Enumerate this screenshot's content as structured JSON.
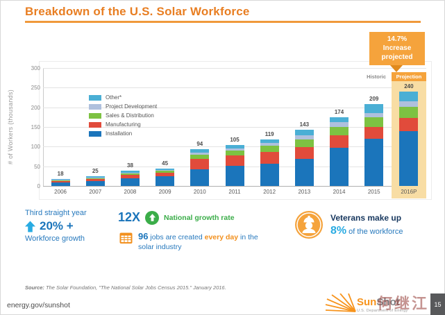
{
  "slide": {
    "title": "Breakdown of the U.S. Solar Workforce",
    "watermark": "何继江",
    "source": {
      "prefix": "Source:",
      "text": " The Solar Foundation, \"The National Solar Jobs Census 2015.\" January 2016."
    },
    "footer": {
      "url": "energy.gov/sunshot",
      "page": "15",
      "logo_sun": "Sun",
      "logo_shot": "Shot",
      "logo_dept": "U.S. Department of Energy"
    }
  },
  "chart_data": {
    "type": "bar",
    "stacked": true,
    "title": "",
    "ylabel": "# of Workers (thousands)",
    "ylim": [
      0,
      300
    ],
    "yticks": [
      0,
      50,
      100,
      150,
      200,
      250,
      300
    ],
    "grid": true,
    "legend_position": "upper-left-inside",
    "categories": [
      "2006",
      "2007",
      "2008",
      "2009",
      "2010",
      "2011",
      "2012",
      "2013",
      "2014",
      "2015",
      "2016P"
    ],
    "totals": [
      18,
      25,
      38,
      45,
      94,
      105,
      119,
      143,
      174,
      209,
      240
    ],
    "series": [
      {
        "name": "Installation",
        "color": "#1B75BB",
        "values": [
          9,
          13,
          20,
          24,
          43,
          52,
          57,
          69,
          97,
          120,
          140
        ]
      },
      {
        "name": "Manufacturing",
        "color": "#E14B3B",
        "values": [
          4,
          5,
          8,
          9,
          25,
          25,
          29,
          30,
          32,
          30,
          33
        ]
      },
      {
        "name": "Sales & Distribution",
        "color": "#7DC242",
        "values": [
          2,
          3,
          4,
          5,
          12,
          13,
          16,
          20,
          21,
          24,
          28
        ]
      },
      {
        "name": "Project Development",
        "color": "#AFC0DD",
        "values": [
          1,
          1,
          2,
          2,
          4,
          5,
          7,
          9,
          12,
          12,
          14
        ]
      },
      {
        "name": "Other*",
        "color": "#4AAFD5",
        "values": [
          2,
          3,
          4,
          5,
          10,
          10,
          10,
          15,
          12,
          23,
          25
        ]
      }
    ],
    "legend_order": [
      "Other*",
      "Project Development",
      "Sales & Distribution",
      "Manufacturing",
      "Installation"
    ],
    "annotations": {
      "historic": "Historic",
      "projection": "Projection",
      "callout_line1": "14.7%",
      "callout_line2": "Increase",
      "callout_line3": "projected"
    }
  },
  "stats": {
    "streak": {
      "line1": "Third straight year",
      "value": "20% +",
      "line2": "Workforce growth"
    },
    "growth": {
      "multiplier": "12X",
      "label": "National growth rate"
    },
    "jobs": {
      "number": "96",
      "before": " jobs are created ",
      "highlight": "every day",
      "after": " in the solar industry"
    },
    "veterans": {
      "line1": "Veterans make up",
      "value": "8%",
      "line2": " of the workforce"
    }
  }
}
